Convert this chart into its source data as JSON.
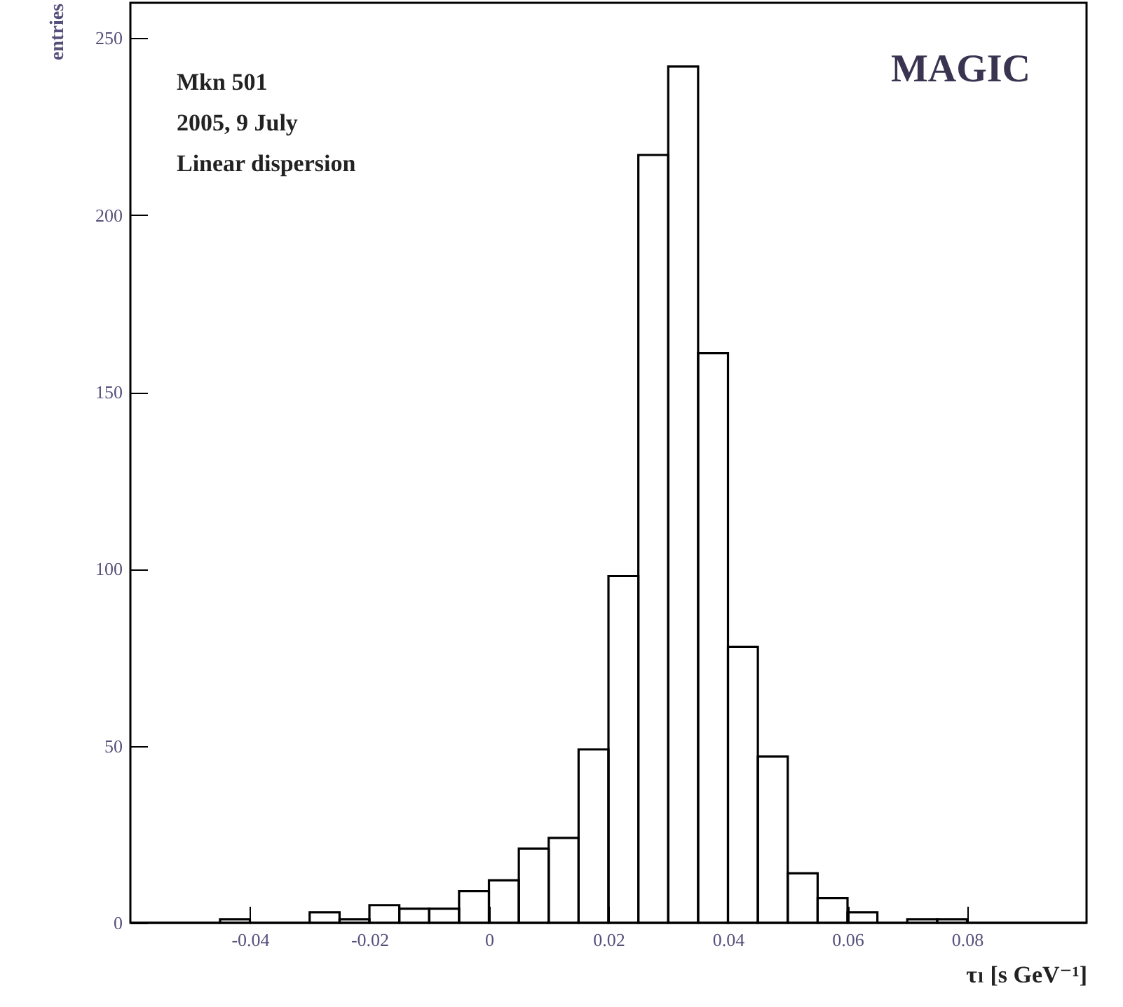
{
  "chart_data": {
    "type": "histogram",
    "xlabel": "τₗ [s  GeV⁻¹]",
    "ylabel": "entries",
    "annotations": [
      "Mkn 501",
      "2005, 9 July",
      "Linear dispersion",
      "MAGIC"
    ],
    "bins": [
      -0.06,
      -0.055,
      -0.05,
      -0.045,
      -0.04,
      -0.035,
      -0.03,
      -0.025,
      -0.02,
      -0.015,
      -0.01,
      -0.005,
      0,
      0.005,
      0.01,
      0.015,
      0.02,
      0.025,
      0.03,
      0.035,
      0.04,
      0.045,
      0.05,
      0.055,
      0.06,
      0.065,
      0.07,
      0.075,
      0.08,
      0.085,
      0.09,
      0.095,
      0.1
    ],
    "values": [
      0,
      0,
      0,
      1,
      0,
      0,
      3,
      1,
      5,
      4,
      4,
      9,
      12,
      21,
      24,
      49,
      98,
      217,
      242,
      161,
      78,
      47,
      14,
      7,
      3,
      0,
      1,
      1,
      0,
      0,
      0,
      0
    ],
    "color": "#000000",
    "xlim": [
      -0.06,
      0.1
    ],
    "xticks": [
      -0.04,
      -0.02,
      0,
      0.02,
      0.04,
      0.06,
      0.08
    ],
    "ylim": [
      0,
      260
    ],
    "yticks": [
      0,
      50,
      100,
      150,
      200,
      250
    ]
  }
}
